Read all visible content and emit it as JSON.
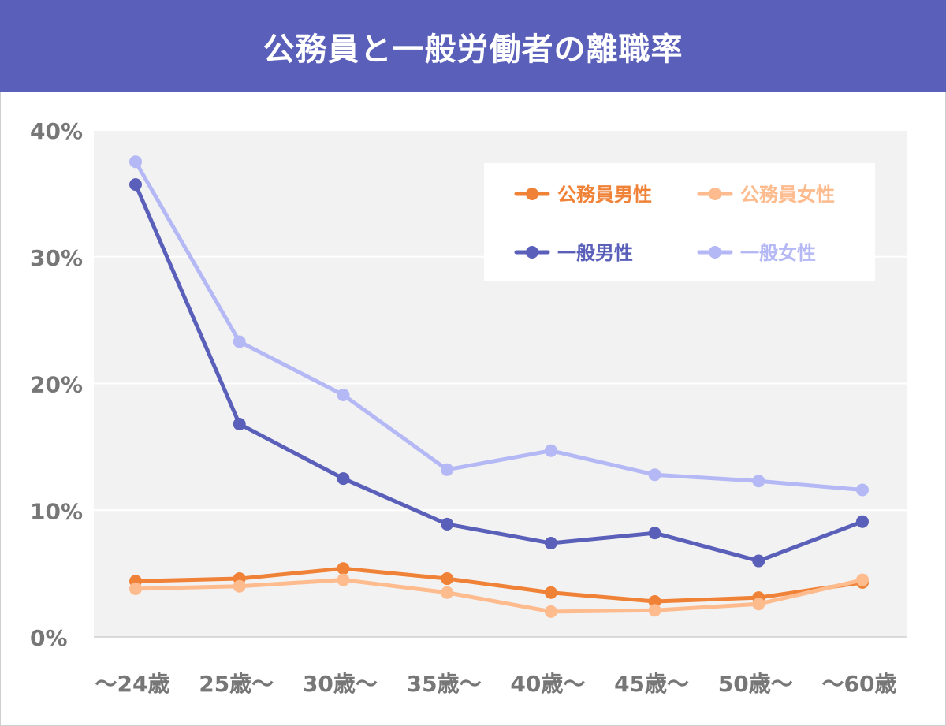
{
  "header": {
    "title": "公務員と一般労働者の離職率",
    "background_color": "#5a5fba"
  },
  "chart_data": {
    "type": "line",
    "title": "公務員と一般労働者の離職率",
    "categories": [
      "～24歳",
      "25歳～",
      "30歳～",
      "35歳～",
      "40歳～",
      "45歳～",
      "50歳～",
      "～60歳"
    ],
    "ylim": [
      0,
      40
    ],
    "yticks": [
      {
        "value": 0,
        "label": "0%"
      },
      {
        "value": 10,
        "label": "10%"
      },
      {
        "value": 20,
        "label": "20%"
      },
      {
        "value": 30,
        "label": "30%"
      },
      {
        "value": 40,
        "label": "40%"
      }
    ],
    "grid": true,
    "legend_position": "top-right",
    "series": [
      {
        "name": "公務員男性",
        "color": "#f08238",
        "values": [
          4.4,
          4.6,
          5.4,
          4.6,
          3.5,
          2.8,
          3.1,
          4.3
        ]
      },
      {
        "name": "公務員女性",
        "color": "#fdbb8e",
        "values": [
          3.8,
          4.0,
          4.5,
          3.5,
          2.0,
          2.1,
          2.6,
          4.5
        ]
      },
      {
        "name": "一般男性",
        "color": "#5a5fba",
        "values": [
          35.7,
          16.8,
          12.5,
          8.9,
          7.4,
          8.2,
          6.0,
          9.1
        ]
      },
      {
        "name": "一般女性",
        "color": "#b4b8f5",
        "values": [
          37.5,
          23.3,
          19.1,
          13.2,
          14.7,
          12.8,
          12.3,
          11.6
        ]
      }
    ]
  }
}
